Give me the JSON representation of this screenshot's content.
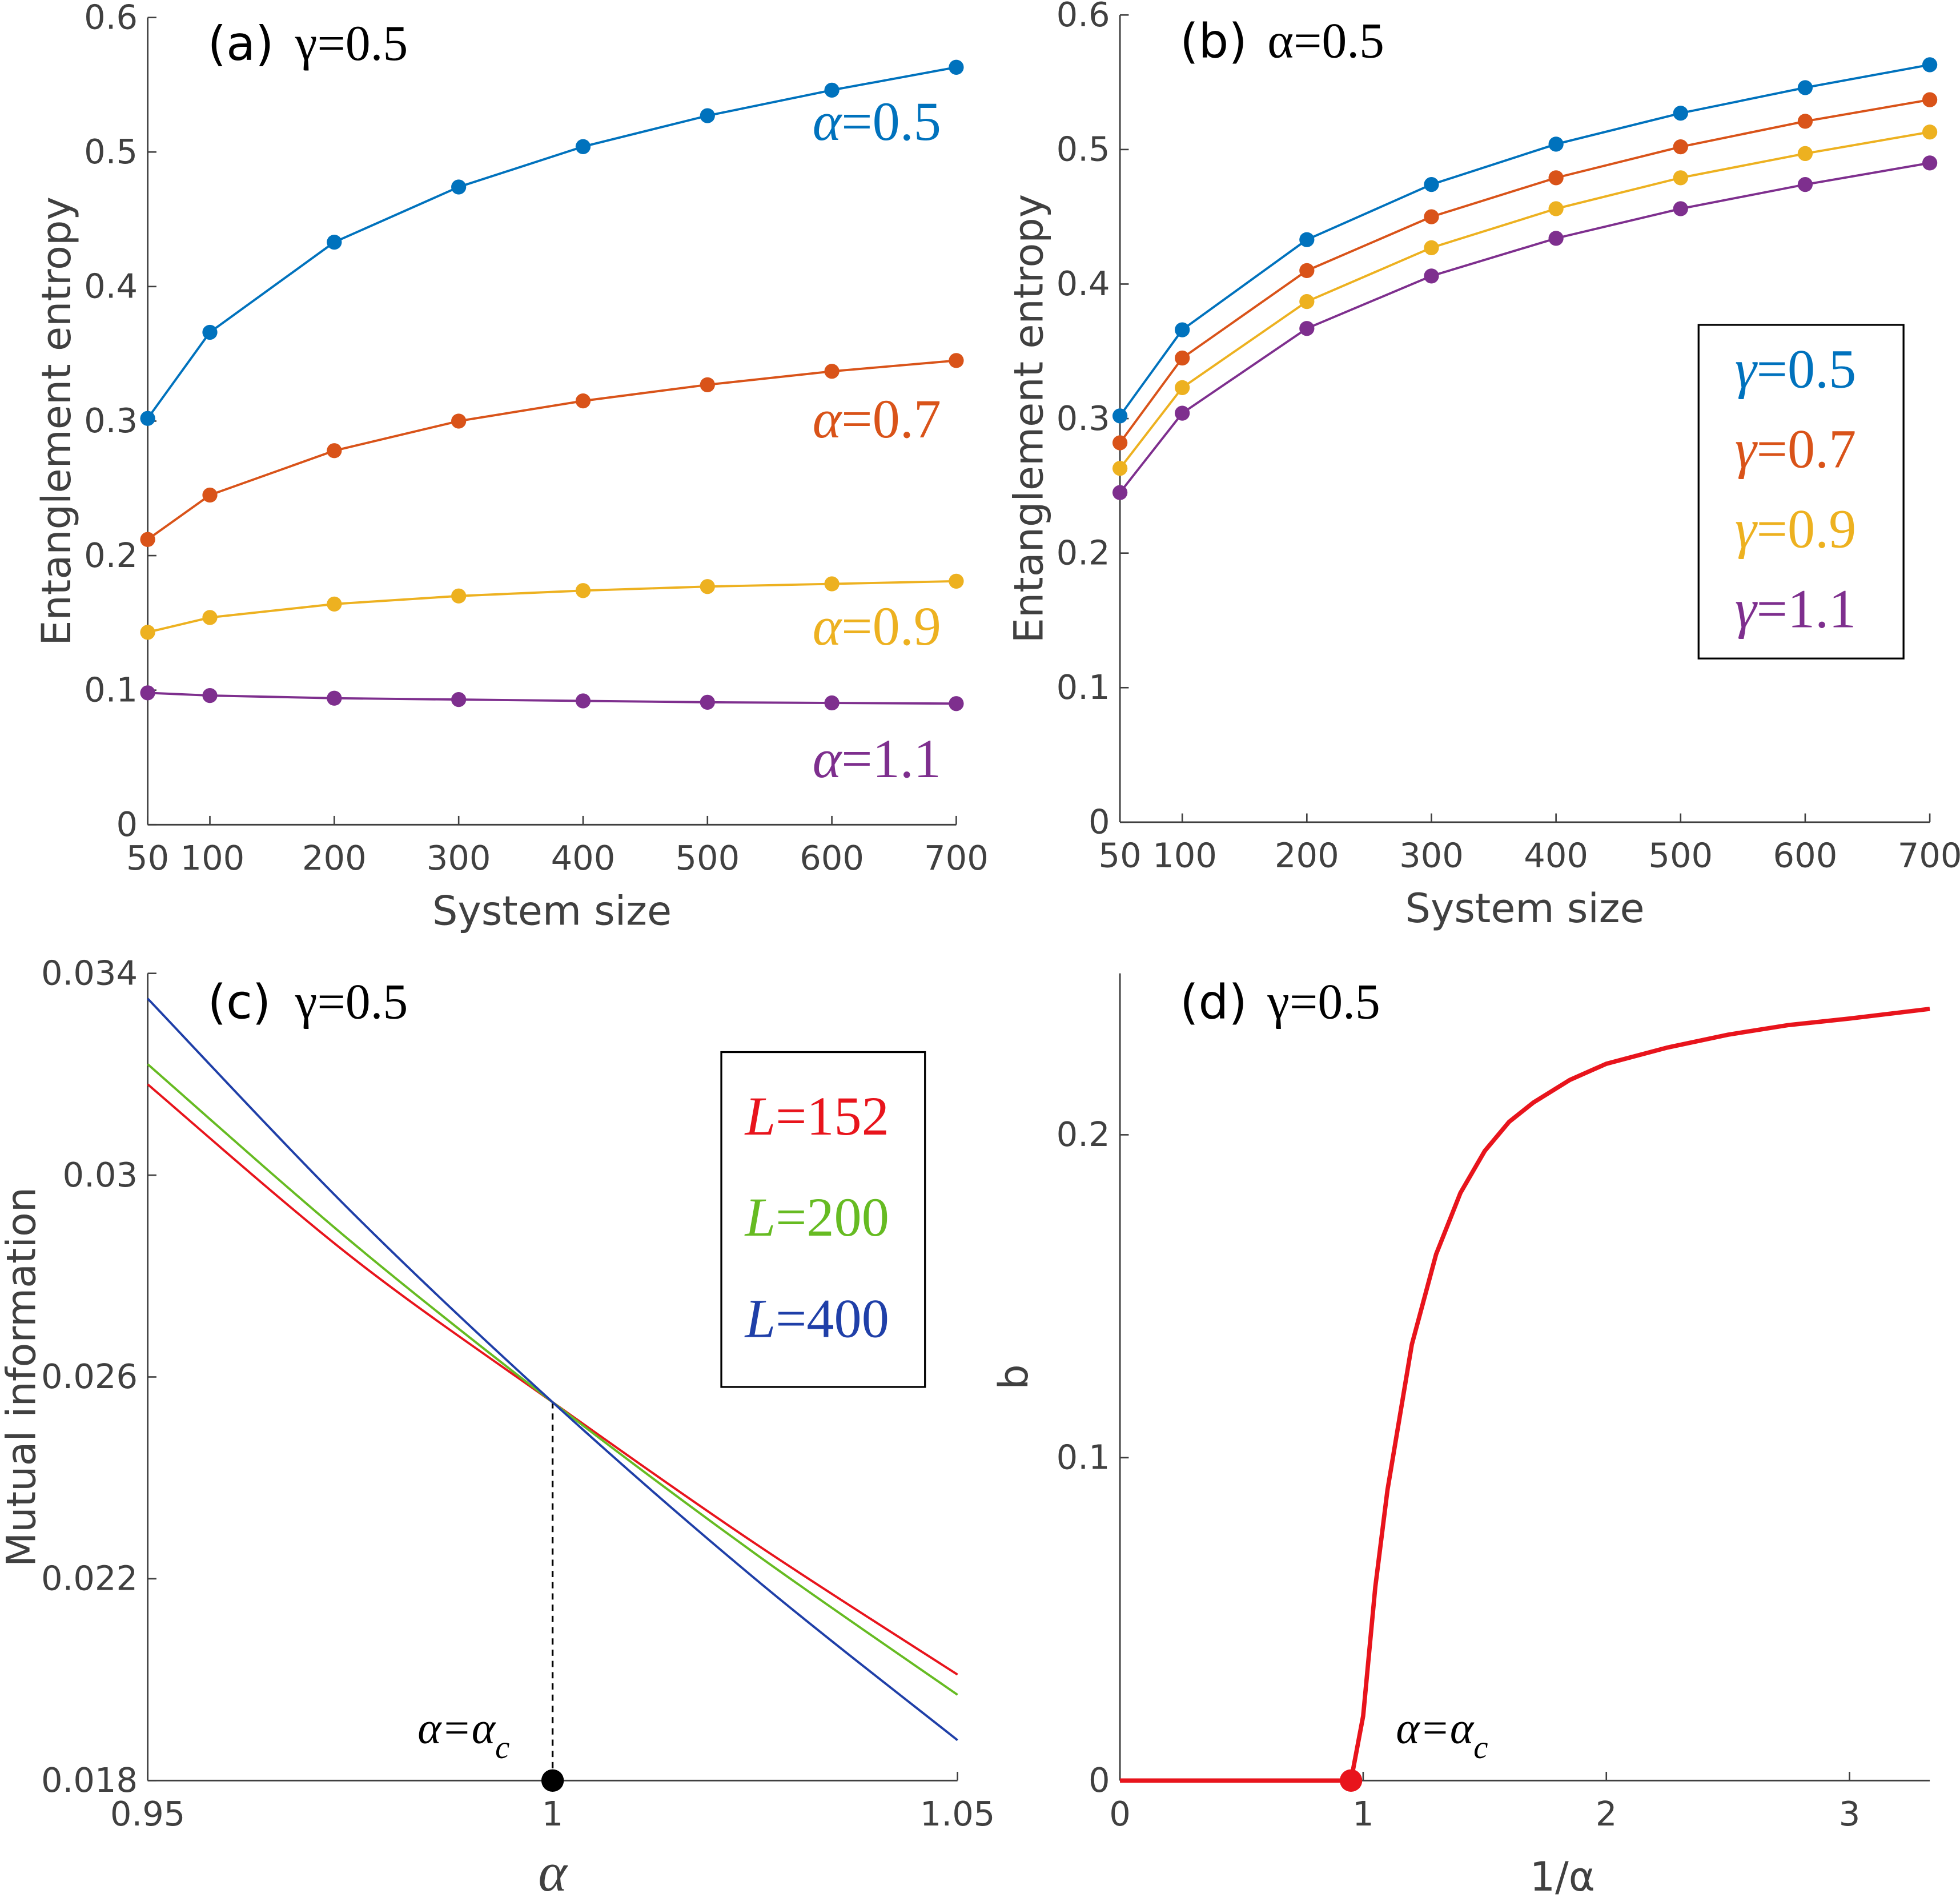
{
  "chart_data": [
    {
      "type": "line",
      "panel_label": "(a)",
      "title_param": "γ=0.5",
      "xlabel": "System size",
      "ylabel": "Entanglement entropy",
      "xlim": [
        50,
        700
      ],
      "ylim": [
        0,
        0.6
      ],
      "xticks": [
        50,
        100,
        200,
        300,
        400,
        500,
        600,
        700
      ],
      "yticks": [
        0,
        0.1,
        0.2,
        0.3,
        0.4,
        0.5,
        0.6
      ],
      "markers": true,
      "labels_inline": true,
      "x": [
        50,
        100,
        200,
        300,
        400,
        500,
        600,
        700
      ],
      "series": [
        {
          "name": "α=0.5",
          "color": "#0072BD",
          "values": [
            0.302,
            0.366,
            0.433,
            0.474,
            0.504,
            0.527,
            0.546,
            0.563
          ]
        },
        {
          "name": "α=0.7",
          "color": "#D95319",
          "values": [
            0.212,
            0.245,
            0.278,
            0.3,
            0.315,
            0.327,
            0.337,
            0.345
          ]
        },
        {
          "name": "α=0.9",
          "color": "#EDB120",
          "values": [
            0.143,
            0.154,
            0.164,
            0.17,
            0.174,
            0.177,
            0.179,
            0.181
          ]
        },
        {
          "name": "α=1.1",
          "color": "#7E2F8E",
          "values": [
            0.098,
            0.096,
            0.094,
            0.093,
            0.092,
            0.091,
            0.0905,
            0.09
          ]
        }
      ]
    },
    {
      "type": "line",
      "panel_label": "(b)",
      "title_param": "α=0.5",
      "xlabel": "System size",
      "ylabel": "Entanglement entropy",
      "xlim": [
        50,
        700
      ],
      "ylim": [
        0,
        0.6
      ],
      "xticks": [
        50,
        100,
        200,
        300,
        400,
        500,
        600,
        700
      ],
      "yticks": [
        0,
        0.1,
        0.2,
        0.3,
        0.4,
        0.5,
        0.6
      ],
      "markers": true,
      "legend": "right",
      "x": [
        50,
        100,
        200,
        300,
        400,
        500,
        600,
        700
      ],
      "series": [
        {
          "name": "γ=0.5",
          "color": "#0072BD",
          "values": [
            0.302,
            0.366,
            0.433,
            0.474,
            0.504,
            0.527,
            0.546,
            0.563
          ]
        },
        {
          "name": "γ=0.7",
          "color": "#D95319",
          "values": [
            0.282,
            0.345,
            0.41,
            0.45,
            0.479,
            0.502,
            0.521,
            0.537
          ]
        },
        {
          "name": "γ=0.9",
          "color": "#EDB120",
          "values": [
            0.263,
            0.323,
            0.387,
            0.427,
            0.456,
            0.479,
            0.497,
            0.513
          ]
        },
        {
          "name": "γ=1.1",
          "color": "#7E2F8E",
          "values": [
            0.245,
            0.304,
            0.367,
            0.406,
            0.434,
            0.456,
            0.474,
            0.49
          ]
        }
      ]
    },
    {
      "type": "line",
      "panel_label": "(c)",
      "title_param": "γ=0.5",
      "xlabel": "α",
      "ylabel": "Mutual information",
      "xlim": [
        0.95,
        1.05
      ],
      "ylim": [
        0.018,
        0.034
      ],
      "xticks": [
        0.95,
        1,
        1.05
      ],
      "xtick_labels": [
        "0.95",
        "1",
        "1.05"
      ],
      "yticks": [
        0.018,
        0.022,
        0.026,
        0.03,
        0.034
      ],
      "ytick_labels": [
        "0.018",
        "0.022",
        "0.026",
        "0.03",
        "0.034"
      ],
      "legend": "top-right",
      "annotation": {
        "text": "α=α",
        "sub": "c",
        "x": 1.0,
        "y": 0.0255,
        "color": "#000000"
      },
      "x": [
        0.95,
        0.975,
        1.0,
        1.025,
        1.05
      ],
      "series": [
        {
          "name": "L=152",
          "color": "#E8141C",
          "values": [
            0.0318,
            0.0284,
            0.0255,
            0.0227,
            0.0201
          ]
        },
        {
          "name": "L=200",
          "color": "#66BB22",
          "values": [
            0.0322,
            0.0287,
            0.0255,
            0.0225,
            0.0197
          ]
        },
        {
          "name": "L=400",
          "color": "#1F3FA8",
          "values": [
            0.0335,
            0.0293,
            0.0255,
            0.022,
            0.0188
          ]
        }
      ]
    },
    {
      "type": "line",
      "panel_label": "(d)",
      "title_param": "γ=0.5",
      "xlabel": "1/α",
      "ylabel": "b",
      "xlim": [
        0,
        3.33
      ],
      "ylim": [
        0,
        0.25
      ],
      "xticks": [
        0,
        1,
        2,
        3
      ],
      "yticks": [
        0,
        0.1,
        0.2
      ],
      "annotation": {
        "text": "α=α",
        "sub": "c",
        "x": 0.95,
        "y": 0,
        "color": "#E8141C"
      },
      "series": [
        {
          "color": "#E8141C",
          "x": [
            0,
            0.95,
            1.0,
            1.05,
            1.1,
            1.2,
            1.3,
            1.4,
            1.5,
            1.6,
            1.7,
            1.85,
            2.0,
            2.25,
            2.5,
            2.75,
            3.0,
            3.33
          ],
          "values": [
            0,
            0,
            0.02,
            0.06,
            0.09,
            0.135,
            0.163,
            0.182,
            0.195,
            0.204,
            0.21,
            0.217,
            0.222,
            0.227,
            0.231,
            0.234,
            0.236,
            0.239
          ]
        }
      ]
    }
  ]
}
